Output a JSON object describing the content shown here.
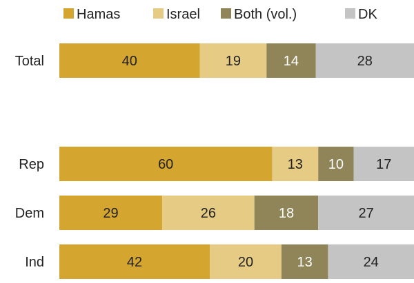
{
  "chart_data": {
    "type": "bar",
    "orientation": "horizontal",
    "stacked": true,
    "title": "",
    "xlabel": "",
    "ylabel": "",
    "categories": [
      "Total",
      "Rep",
      "Dem",
      "Ind"
    ],
    "series": [
      {
        "name": "Hamas",
        "color": "#d4a52f",
        "label_color": "#222222",
        "values": [
          40,
          60,
          29,
          42
        ]
      },
      {
        "name": "Israel",
        "color": "#e5cb84",
        "label_color": "#222222",
        "values": [
          19,
          13,
          26,
          20
        ]
      },
      {
        "name": "Both (vol.)",
        "color": "#8f8559",
        "label_color": "#ffffff",
        "values": [
          14,
          10,
          18,
          13
        ]
      },
      {
        "name": "DK",
        "color": "#c4c4c4",
        "label_color": "#222222",
        "values": [
          28,
          17,
          27,
          24
        ]
      }
    ],
    "grid": false,
    "legend_position": "top"
  }
}
